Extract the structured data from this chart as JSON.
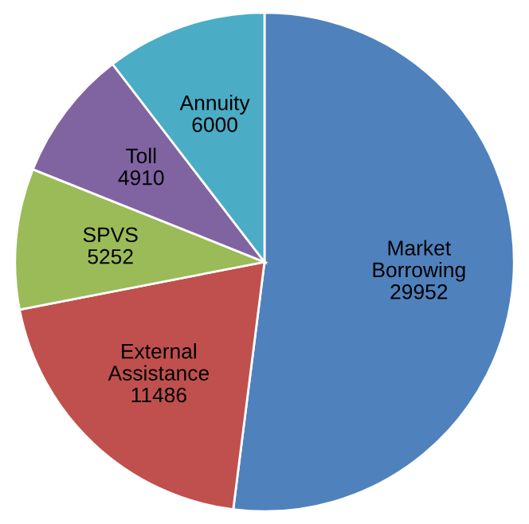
{
  "chart_data": {
    "type": "pie",
    "categories": [
      "Market Borrowing",
      "External Assistance",
      "SPVS",
      "Toll",
      "Annuity"
    ],
    "values": [
      29952,
      11486,
      5252,
      4910,
      6000
    ],
    "colors": [
      "#4f81bd",
      "#c0504d",
      "#9bbb59",
      "#8064a2",
      "#4bacc6"
    ],
    "data_labels": true,
    "legend": false
  }
}
